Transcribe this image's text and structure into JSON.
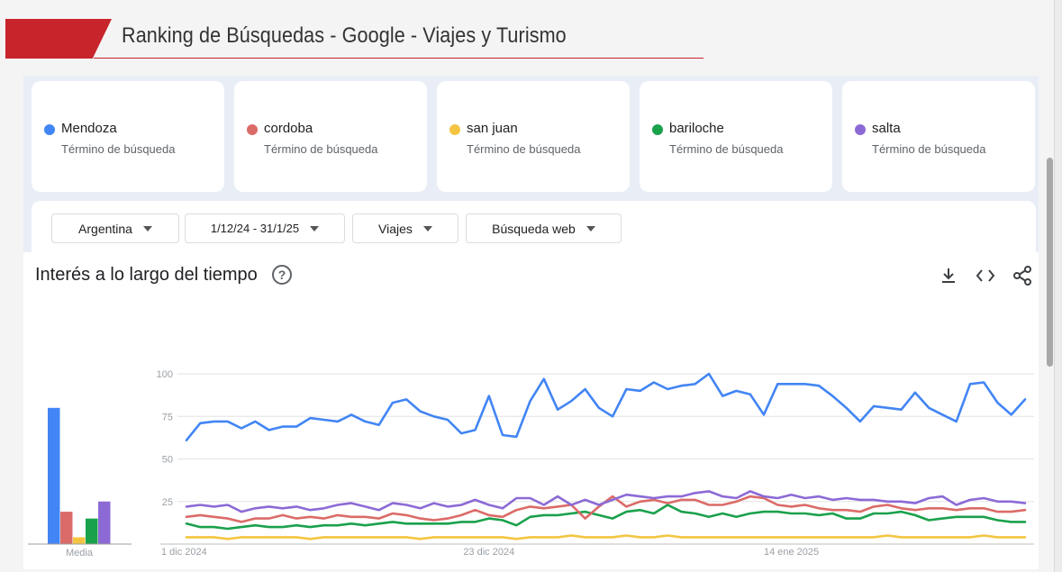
{
  "header": {
    "title": "Ranking de Búsquedas - Google - Viajes y Turismo"
  },
  "terms": [
    {
      "name": "Mendoza",
      "sub": "Término de búsqueda",
      "color": "#4285f4"
    },
    {
      "name": "cordoba",
      "sub": "Término de búsqueda",
      "color": "#db6b68"
    },
    {
      "name": "san juan",
      "sub": "Término de búsqueda",
      "color": "#f4c542"
    },
    {
      "name": "bariloche",
      "sub": "Término de búsqueda",
      "color": "#1aa14c"
    },
    {
      "name": "salta",
      "sub": "Término de búsqueda",
      "color": "#8c6ad6"
    }
  ],
  "filters": {
    "region": "Argentina",
    "dates": "1/12/24 - 31/1/25",
    "category": "Viajes",
    "type": "Búsqueda web"
  },
  "chart_card": {
    "title": "Interés a lo largo del tiempo",
    "help": "?"
  },
  "icons": {
    "download": "download-icon",
    "embed": "embed-code-icon",
    "share": "share-icon"
  },
  "chart_data": {
    "type": "line",
    "ylim": [
      0,
      100
    ],
    "yticks": [
      25,
      50,
      75,
      100
    ],
    "xtick_labels": [
      {
        "label": "1 dic 2024",
        "index": 0
      },
      {
        "label": "23 dic 2024",
        "index": 22
      },
      {
        "label": "14 ene 2025",
        "index": 44
      }
    ],
    "x": [
      "2024-12-01",
      "2024-12-02",
      "2024-12-03",
      "2024-12-04",
      "2024-12-05",
      "2024-12-06",
      "2024-12-07",
      "2024-12-08",
      "2024-12-09",
      "2024-12-10",
      "2024-12-11",
      "2024-12-12",
      "2024-12-13",
      "2024-12-14",
      "2024-12-15",
      "2024-12-16",
      "2024-12-17",
      "2024-12-18",
      "2024-12-19",
      "2024-12-20",
      "2024-12-21",
      "2024-12-22",
      "2024-12-23",
      "2024-12-24",
      "2024-12-25",
      "2024-12-26",
      "2024-12-27",
      "2024-12-28",
      "2024-12-29",
      "2024-12-30",
      "2024-12-31",
      "2025-01-01",
      "2025-01-02",
      "2025-01-03",
      "2025-01-04",
      "2025-01-05",
      "2025-01-06",
      "2025-01-07",
      "2025-01-08",
      "2025-01-09",
      "2025-01-10",
      "2025-01-11",
      "2025-01-12",
      "2025-01-13",
      "2025-01-14",
      "2025-01-15",
      "2025-01-16",
      "2025-01-17",
      "2025-01-18",
      "2025-01-19",
      "2025-01-20",
      "2025-01-21",
      "2025-01-22",
      "2025-01-23",
      "2025-01-24",
      "2025-01-25",
      "2025-01-26",
      "2025-01-27",
      "2025-01-28",
      "2025-01-29",
      "2025-01-30",
      "2025-01-31"
    ],
    "series": [
      {
        "name": "Mendoza",
        "color": "#4285f4",
        "values": [
          61,
          71,
          72,
          72,
          68,
          72,
          67,
          69,
          69,
          74,
          73,
          72,
          76,
          72,
          70,
          83,
          85,
          78,
          75,
          73,
          65,
          67,
          87,
          64,
          63,
          84,
          97,
          79,
          84,
          91,
          80,
          75,
          91,
          90,
          95,
          91,
          93,
          94,
          100,
          87,
          90,
          88,
          76,
          94,
          94,
          94,
          93,
          87,
          80,
          72,
          81,
          80,
          79,
          89,
          80,
          76,
          72,
          94,
          95,
          83,
          76,
          85
        ]
      },
      {
        "name": "cordoba",
        "color": "#db6b68",
        "values": [
          16,
          17,
          16,
          15,
          13,
          15,
          15,
          17,
          15,
          16,
          15,
          17,
          16,
          16,
          15,
          18,
          17,
          15,
          14,
          15,
          17,
          20,
          17,
          16,
          20,
          22,
          21,
          22,
          23,
          15,
          22,
          28,
          22,
          25,
          26,
          24,
          26,
          26,
          23,
          23,
          25,
          28,
          27,
          23,
          22,
          23,
          21,
          20,
          20,
          19,
          22,
          23,
          21,
          20,
          21,
          21,
          20,
          21,
          21,
          19,
          19,
          20
        ]
      },
      {
        "name": "san juan",
        "color": "#f4c542",
        "values": [
          4,
          4,
          4,
          3,
          4,
          4,
          4,
          4,
          4,
          3,
          4,
          4,
          4,
          4,
          4,
          4,
          4,
          3,
          4,
          4,
          4,
          4,
          4,
          4,
          3,
          4,
          4,
          4,
          5,
          4,
          4,
          4,
          5,
          4,
          4,
          5,
          4,
          4,
          4,
          4,
          4,
          4,
          4,
          4,
          4,
          4,
          4,
          4,
          4,
          4,
          4,
          5,
          4,
          4,
          4,
          4,
          4,
          4,
          5,
          4,
          4,
          4
        ]
      },
      {
        "name": "bariloche",
        "color": "#1aa14c",
        "values": [
          12,
          10,
          10,
          9,
          10,
          11,
          10,
          10,
          11,
          10,
          11,
          11,
          12,
          11,
          12,
          13,
          12,
          12,
          12,
          12,
          13,
          13,
          15,
          14,
          11,
          16,
          17,
          17,
          18,
          19,
          17,
          15,
          19,
          20,
          18,
          23,
          19,
          18,
          16,
          18,
          16,
          18,
          19,
          19,
          18,
          18,
          17,
          18,
          15,
          15,
          18,
          18,
          19,
          17,
          14,
          15,
          16,
          16,
          16,
          14,
          13,
          13
        ]
      },
      {
        "name": "salta",
        "color": "#8c6ad6",
        "values": [
          22,
          23,
          22,
          23,
          19,
          21,
          22,
          21,
          22,
          20,
          21,
          23,
          24,
          22,
          20,
          24,
          23,
          21,
          24,
          22,
          23,
          26,
          23,
          21,
          27,
          27,
          23,
          28,
          23,
          26,
          23,
          26,
          29,
          28,
          27,
          28,
          28,
          30,
          31,
          28,
          27,
          31,
          28,
          27,
          29,
          27,
          28,
          26,
          27,
          26,
          26,
          25,
          25,
          24,
          27,
          28,
          23,
          26,
          27,
          25,
          25,
          24
        ]
      }
    ],
    "media": {
      "label": "Media",
      "bars": [
        {
          "name": "Mendoza",
          "value": 80,
          "color": "#4285f4"
        },
        {
          "name": "cordoba",
          "value": 19,
          "color": "#db6b68"
        },
        {
          "name": "san juan",
          "value": 4,
          "color": "#f4c542"
        },
        {
          "name": "bariloche",
          "value": 15,
          "color": "#1aa14c"
        },
        {
          "name": "salta",
          "value": 25,
          "color": "#8c6ad6"
        }
      ]
    }
  }
}
